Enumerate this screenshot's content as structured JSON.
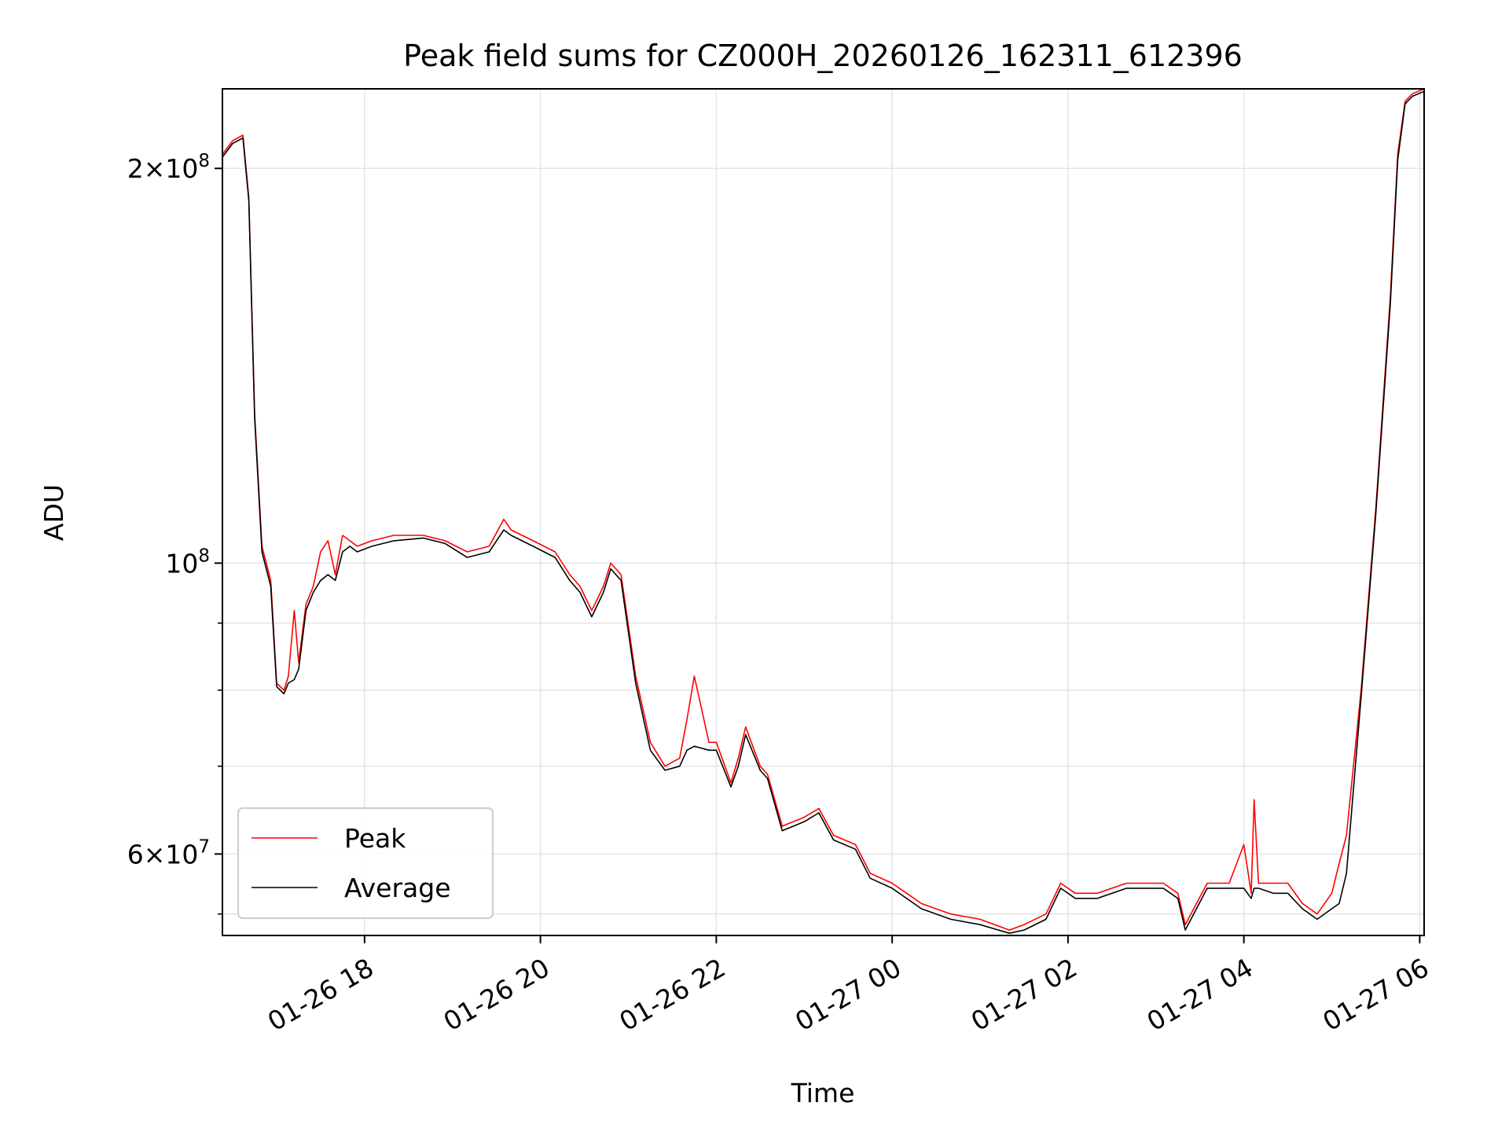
{
  "chart_data": {
    "type": "line",
    "title": "Peak field sums for CZ000H_20260126_162311_612396",
    "xlabel": "Time",
    "ylabel": "ADU",
    "yscale": "log",
    "grid": true,
    "legend_location": "lower-left",
    "xlim": [
      "2026-01-26 16:23",
      "2026-01-27 06:03"
    ],
    "ylim": [
      52000000,
      230000000
    ],
    "x_ticks": [
      {
        "value": "2026-01-26 18:00",
        "label": "01-26 18"
      },
      {
        "value": "2026-01-26 20:00",
        "label": "01-26 20"
      },
      {
        "value": "2026-01-26 22:00",
        "label": "01-26 22"
      },
      {
        "value": "2026-01-27 00:00",
        "label": "01-27 00"
      },
      {
        "value": "2026-01-27 02:00",
        "label": "01-27 02"
      },
      {
        "value": "2026-01-27 04:00",
        "label": "01-27 04"
      },
      {
        "value": "2026-01-27 06:00",
        "label": "01-27 06"
      }
    ],
    "y_major_ticks": [
      {
        "value": 60000000,
        "mantissa": "6",
        "base": "10",
        "exp": "7"
      },
      {
        "value": 100000000,
        "mantissa": "",
        "base": "10",
        "exp": "8"
      },
      {
        "value": 200000000,
        "mantissa": "2",
        "base": "10",
        "exp": "8"
      }
    ],
    "y_minor_ticks": [
      54000000,
      70000000,
      80000000,
      90000000
    ],
    "series": [
      {
        "name": "Peak",
        "color": "#ff0000",
        "x": [
          "2026-01-26 16:23",
          "2026-01-26 16:30",
          "2026-01-26 16:37",
          "2026-01-26 16:41",
          "2026-01-26 16:45",
          "2026-01-26 16:50",
          "2026-01-26 16:56",
          "2026-01-26 17:00",
          "2026-01-26 17:05",
          "2026-01-26 17:08",
          "2026-01-26 17:12",
          "2026-01-26 17:15",
          "2026-01-26 17:20",
          "2026-01-26 17:25",
          "2026-01-26 17:30",
          "2026-01-26 17:35",
          "2026-01-26 17:40",
          "2026-01-26 17:45",
          "2026-01-26 17:50",
          "2026-01-26 17:55",
          "2026-01-26 18:05",
          "2026-01-26 18:20",
          "2026-01-26 18:40",
          "2026-01-26 18:55",
          "2026-01-26 19:10",
          "2026-01-26 19:25",
          "2026-01-26 19:35",
          "2026-01-26 19:40",
          "2026-01-26 19:55",
          "2026-01-26 20:10",
          "2026-01-26 20:20",
          "2026-01-26 20:27",
          "2026-01-26 20:35",
          "2026-01-26 20:43",
          "2026-01-26 20:48",
          "2026-01-26 20:55",
          "2026-01-26 21:05",
          "2026-01-26 21:15",
          "2026-01-26 21:25",
          "2026-01-26 21:35",
          "2026-01-26 21:40",
          "2026-01-26 21:45",
          "2026-01-26 21:55",
          "2026-01-26 22:00",
          "2026-01-26 22:10",
          "2026-01-26 22:15",
          "2026-01-26 22:20",
          "2026-01-26 22:30",
          "2026-01-26 22:35",
          "2026-01-26 22:45",
          "2026-01-26 23:00",
          "2026-01-26 23:10",
          "2026-01-26 23:20",
          "2026-01-26 23:35",
          "2026-01-26 23:45",
          "2026-01-27 00:00",
          "2026-01-27 00:20",
          "2026-01-27 00:40",
          "2026-01-27 01:00",
          "2026-01-27 01:20",
          "2026-01-27 01:30",
          "2026-01-27 01:45",
          "2026-01-27 01:55",
          "2026-01-27 02:05",
          "2026-01-27 02:20",
          "2026-01-27 02:40",
          "2026-01-27 02:55",
          "2026-01-27 03:05",
          "2026-01-27 03:15",
          "2026-01-27 03:20",
          "2026-01-27 03:35",
          "2026-01-27 03:50",
          "2026-01-27 04:00",
          "2026-01-27 04:05",
          "2026-01-27 04:07",
          "2026-01-27 04:10",
          "2026-01-27 04:20",
          "2026-01-27 04:30",
          "2026-01-27 04:40",
          "2026-01-27 04:50",
          "2026-01-27 05:00",
          "2026-01-27 05:05",
          "2026-01-27 05:10",
          "2026-01-27 05:20",
          "2026-01-27 05:30",
          "2026-01-27 05:40",
          "2026-01-27 05:45",
          "2026-01-27 05:50",
          "2026-01-27 05:55",
          "2026-01-27 06:03"
        ],
        "y": [
          205000000,
          210000000,
          212000000,
          190000000,
          130000000,
          103000000,
          97000000,
          81000000,
          80000000,
          82000000,
          92000000,
          84000000,
          93000000,
          96000000,
          102000000,
          104000000,
          98000000,
          105000000,
          104000000,
          103000000,
          104000000,
          105000000,
          105000000,
          104000000,
          102000000,
          103000000,
          108000000,
          106000000,
          104000000,
          102000000,
          98000000,
          96000000,
          92000000,
          96000000,
          100000000,
          98000000,
          82000000,
          73000000,
          70000000,
          71000000,
          76000000,
          82000000,
          73000000,
          73000000,
          68000000,
          71000000,
          75000000,
          70000000,
          69000000,
          63000000,
          64000000,
          65000000,
          62000000,
          61000000,
          58000000,
          57000000,
          55000000,
          54000000,
          53500000,
          52500000,
          53000000,
          54000000,
          57000000,
          56000000,
          56000000,
          57000000,
          57000000,
          57000000,
          56000000,
          53000000,
          57000000,
          57000000,
          61000000,
          56000000,
          66000000,
          57000000,
          57000000,
          57000000,
          55000000,
          54000000,
          56000000,
          59000000,
          62000000,
          80000000,
          110000000,
          160000000,
          205000000,
          225000000,
          228000000,
          230000000
        ]
      },
      {
        "name": "Average",
        "color": "#000000",
        "x": [
          "2026-01-26 16:23",
          "2026-01-26 16:30",
          "2026-01-26 16:37",
          "2026-01-26 16:41",
          "2026-01-26 16:45",
          "2026-01-26 16:50",
          "2026-01-26 16:56",
          "2026-01-26 17:00",
          "2026-01-26 17:05",
          "2026-01-26 17:08",
          "2026-01-26 17:12",
          "2026-01-26 17:15",
          "2026-01-26 17:20",
          "2026-01-26 17:25",
          "2026-01-26 17:30",
          "2026-01-26 17:35",
          "2026-01-26 17:40",
          "2026-01-26 17:45",
          "2026-01-26 17:50",
          "2026-01-26 17:55",
          "2026-01-26 18:05",
          "2026-01-26 18:20",
          "2026-01-26 18:40",
          "2026-01-26 18:55",
          "2026-01-26 19:10",
          "2026-01-26 19:25",
          "2026-01-26 19:35",
          "2026-01-26 19:40",
          "2026-01-26 19:55",
          "2026-01-26 20:10",
          "2026-01-26 20:20",
          "2026-01-26 20:27",
          "2026-01-26 20:35",
          "2026-01-26 20:43",
          "2026-01-26 20:48",
          "2026-01-26 20:55",
          "2026-01-26 21:05",
          "2026-01-26 21:15",
          "2026-01-26 21:25",
          "2026-01-26 21:35",
          "2026-01-26 21:40",
          "2026-01-26 21:45",
          "2026-01-26 21:55",
          "2026-01-26 22:00",
          "2026-01-26 22:10",
          "2026-01-26 22:15",
          "2026-01-26 22:20",
          "2026-01-26 22:30",
          "2026-01-26 22:35",
          "2026-01-26 22:45",
          "2026-01-26 23:00",
          "2026-01-26 23:10",
          "2026-01-26 23:20",
          "2026-01-26 23:35",
          "2026-01-26 23:45",
          "2026-01-27 00:00",
          "2026-01-27 00:20",
          "2026-01-27 00:40",
          "2026-01-27 01:00",
          "2026-01-27 01:20",
          "2026-01-27 01:30",
          "2026-01-27 01:45",
          "2026-01-27 01:55",
          "2026-01-27 02:05",
          "2026-01-27 02:20",
          "2026-01-27 02:40",
          "2026-01-27 02:55",
          "2026-01-27 03:05",
          "2026-01-27 03:15",
          "2026-01-27 03:20",
          "2026-01-27 03:35",
          "2026-01-27 03:50",
          "2026-01-27 04:00",
          "2026-01-27 04:05",
          "2026-01-27 04:07",
          "2026-01-27 04:10",
          "2026-01-27 04:20",
          "2026-01-27 04:30",
          "2026-01-27 04:40",
          "2026-01-27 04:50",
          "2026-01-27 05:00",
          "2026-01-27 05:05",
          "2026-01-27 05:10",
          "2026-01-27 05:20",
          "2026-01-27 05:30",
          "2026-01-27 05:40",
          "2026-01-27 05:45",
          "2026-01-27 05:50",
          "2026-01-27 05:55",
          "2026-01-27 06:03"
        ],
        "y": [
          204000000,
          209000000,
          211000000,
          189000000,
          129000000,
          102000000,
          96000000,
          80500000,
          79500000,
          81000000,
          81500000,
          83000000,
          92000000,
          95000000,
          97000000,
          98000000,
          97000000,
          102000000,
          103000000,
          102000000,
          103000000,
          104000000,
          104500000,
          103500000,
          101000000,
          102000000,
          106000000,
          105000000,
          103000000,
          101000000,
          97000000,
          95000000,
          91000000,
          95000000,
          99000000,
          97000000,
          81000000,
          72000000,
          69500000,
          70000000,
          72000000,
          72500000,
          72000000,
          72000000,
          67500000,
          70000000,
          74000000,
          69500000,
          68500000,
          62500000,
          63500000,
          64500000,
          61500000,
          60500000,
          57500000,
          56500000,
          54500000,
          53500000,
          53000000,
          52200000,
          52500000,
          53500000,
          56500000,
          55500000,
          55500000,
          56500000,
          56500000,
          56500000,
          55500000,
          52500000,
          56500000,
          56500000,
          56500000,
          55500000,
          56500000,
          56500000,
          56000000,
          56000000,
          54500000,
          53500000,
          54500000,
          55000000,
          58000000,
          79000000,
          109000000,
          158000000,
          203000000,
          224000000,
          227000000,
          229000000
        ]
      }
    ]
  }
}
